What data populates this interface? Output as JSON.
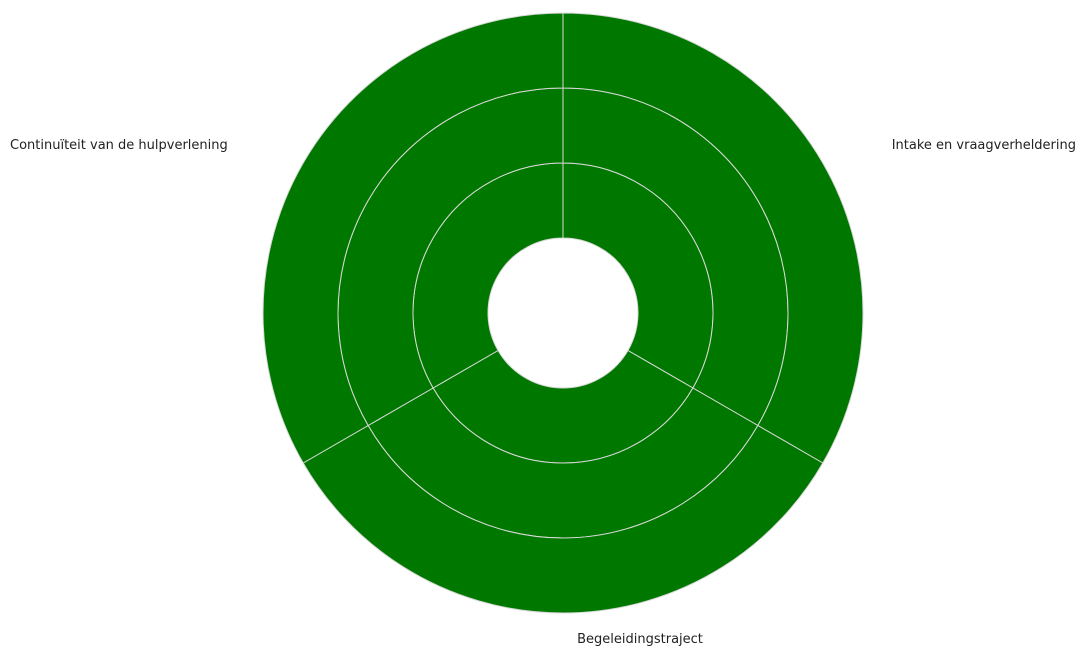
{
  "chart_data": {
    "type": "sunburst",
    "segments": [
      {
        "label": "Intake en vraagverheldering",
        "start_deg": 0,
        "end_deg": 120,
        "rings": 3
      },
      {
        "label": "Begeleidingstraject",
        "start_deg": 120,
        "end_deg": 240,
        "rings": 3
      },
      {
        "label": "Continuïteit van de hulpverlening",
        "start_deg": 240,
        "end_deg": 360,
        "rings": 3
      }
    ],
    "fill_color": "#007800",
    "line_color": "#d9d9d9",
    "background_color": "#ffffff"
  }
}
